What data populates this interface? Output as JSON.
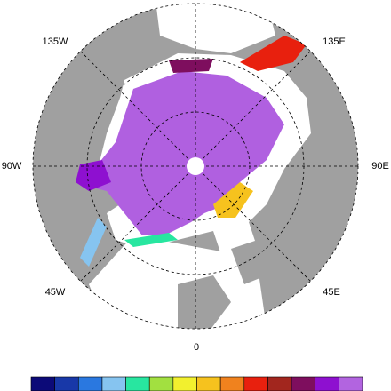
{
  "map": {
    "longitude_labels": [
      "135W",
      "135E",
      "90W",
      "90E",
      "45W",
      "45E",
      "0"
    ],
    "colorbar": {
      "colors": [
        "#0c0a78",
        "#1838a8",
        "#2a78e0",
        "#86c4f0",
        "#28e6a0",
        "#a2e040",
        "#f2f02e",
        "#f6c21e",
        "#f0821e",
        "#e8200e",
        "#a2261e",
        "#7e0e5e",
        "#8e10d0",
        "#b264e0"
      ]
    }
  }
}
